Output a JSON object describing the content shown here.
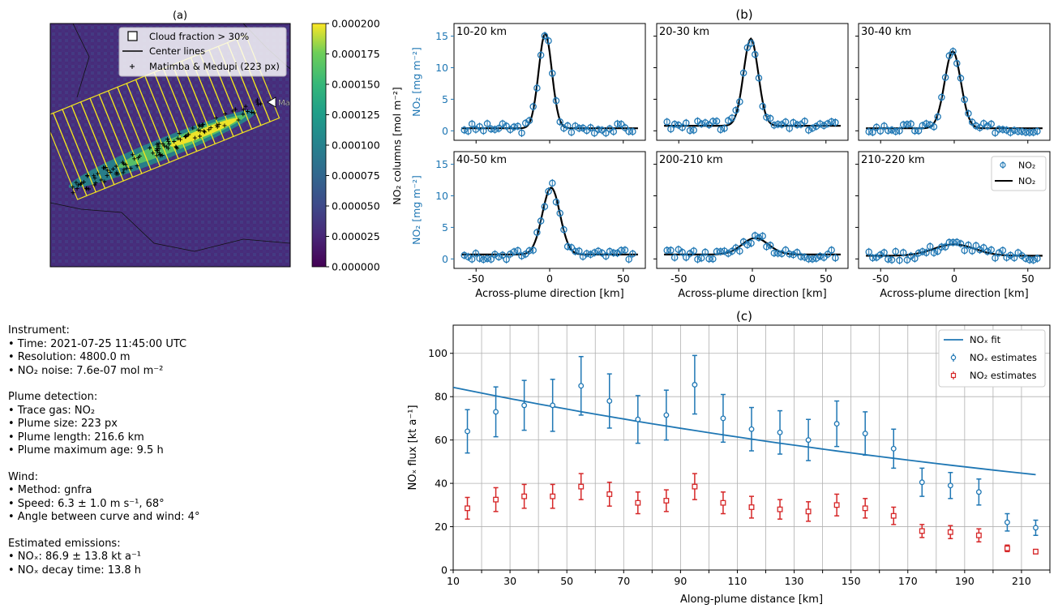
{
  "panel_titles": {
    "a": "(a)",
    "b": "(b)",
    "c": "(c)"
  },
  "map": {
    "legend": {
      "cloud": "Cloud fraction > 30%",
      "center": "Center lines",
      "sources": "Matimba & Medupi (223 px)"
    },
    "source_label": "Ma",
    "colorbar": {
      "label": "NO₂ columns [mol m⁻²]",
      "ticks": [
        "0.000000",
        "0.000025",
        "0.000050",
        "0.000075",
        "0.000100",
        "0.000125",
        "0.000150",
        "0.000175",
        "0.000200"
      ],
      "range": [
        0,
        0.0002
      ],
      "colormap": "viridis"
    }
  },
  "info": {
    "instrument_title": "Instrument:",
    "time": "• Time: 2021-07-25 11:45:00 UTC",
    "resolution": "• Resolution: 4800.0 m",
    "noise": "• NO₂ noise: 7.6e-07 mol m⁻²",
    "detection_title": "Plume detection:",
    "trace_gas": "• Trace gas: NO₂",
    "plume_size": "• Plume size: 223 px",
    "plume_length": "• Plume length: 216.6 km",
    "plume_age": "• Plume maximum age: 9.5 h",
    "wind_title": "Wind:",
    "wind_method": "• Method: gnfra",
    "wind_speed": "• Speed: 6.3 ± 1.0 m s⁻¹, 68°",
    "wind_angle": "• Angle between curve and wind: 4°",
    "emissions_title": "Estimated emissions:",
    "nox_emission": "• NOₓ: 86.9 ± 13.8 kt a⁻¹",
    "decay_time": "• NOₓ decay time: 13.8 h"
  },
  "chart_data": [
    {
      "type": "scatter",
      "id": "profiles",
      "xlabel": "Across-plume direction [km]",
      "ylabel": "NO₂ [mg m⁻²]",
      "xticks": [
        -50,
        0,
        50
      ],
      "yticks": [
        0,
        5,
        10,
        15
      ],
      "xlim": [
        -65,
        65
      ],
      "ylim": [
        -1.5,
        17
      ],
      "legend": {
        "obs": "NO₂",
        "fit": "NO₂",
        "placement": "top-right of last panel"
      },
      "colors": {
        "obs": "#1f77b4",
        "fit": "#000000"
      },
      "panels": [
        {
          "label": "10-20 km",
          "amp": 15.0,
          "center": -3,
          "sigma": 4.5,
          "bg": 0.4
        },
        {
          "label": "20-30 km",
          "amp": 13.8,
          "center": -1,
          "sigma": 5.0,
          "bg": 0.8
        },
        {
          "label": "30-40 km",
          "amp": 12.2,
          "center": -1,
          "sigma": 5.5,
          "bg": 0.4
        },
        {
          "label": "40-50 km",
          "amp": 10.6,
          "center": 1,
          "sigma": 6.0,
          "bg": 0.7
        },
        {
          "label": "200-210 km",
          "amp": 2.6,
          "center": 2,
          "sigma": 9.0,
          "bg": 0.7
        },
        {
          "label": "210-220 km",
          "amp": 1.8,
          "center": 0,
          "sigma": 14.0,
          "bg": 0.5
        }
      ]
    },
    {
      "type": "scatter",
      "id": "flux",
      "xlabel": "Along-plume distance [km]",
      "ylabel": "NOₓ flux [kt a⁻¹]",
      "xlim": [
        10,
        220
      ],
      "ylim": [
        0,
        113
      ],
      "xticks": [
        10,
        30,
        50,
        70,
        90,
        110,
        130,
        150,
        170,
        190,
        210
      ],
      "yticks": [
        0,
        20,
        40,
        60,
        80,
        100
      ],
      "grid": true,
      "legend": {
        "fit": "NOₓ fit",
        "nox": "NOₓ estimates",
        "no2": "NO₂ estimates",
        "placement": "top-right"
      },
      "colors": {
        "nox": "#1f77b4",
        "no2": "#d62728"
      },
      "x": [
        15,
        25,
        35,
        45,
        55,
        65,
        75,
        85,
        95,
        105,
        115,
        125,
        135,
        145,
        155,
        165,
        175,
        185,
        195,
        205,
        215
      ],
      "nox": [
        64,
        73,
        76,
        76,
        85,
        78,
        69.5,
        71.5,
        85.5,
        70,
        65,
        63.5,
        60,
        67.5,
        63,
        56,
        40.5,
        39,
        36,
        22,
        19.5
      ],
      "nox_err": [
        10,
        11.5,
        11.5,
        12,
        13.5,
        12.5,
        11,
        11.5,
        13.5,
        11,
        10,
        10,
        9.5,
        10.5,
        10,
        9,
        6.5,
        6,
        6,
        4,
        3.5
      ],
      "no2": [
        28.5,
        32.5,
        34,
        34,
        38.5,
        35,
        31,
        32,
        38.5,
        31,
        29,
        28,
        27,
        30,
        28.5,
        25,
        18,
        17.5,
        16,
        10,
        8.5
      ],
      "no2_err": [
        5,
        5.5,
        5.5,
        5.5,
        6,
        5.5,
        5,
        5,
        6,
        5,
        5,
        4.5,
        4.5,
        5,
        4.5,
        4,
        3,
        3,
        3,
        1.5,
        1
      ],
      "fit_x": [
        10,
        215
      ],
      "fit_y": [
        84.3,
        44
      ]
    }
  ]
}
